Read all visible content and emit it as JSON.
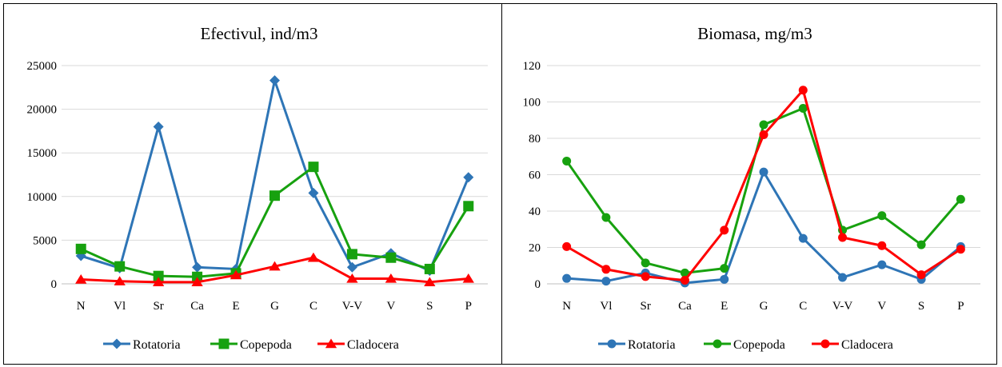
{
  "chart_data": [
    {
      "type": "line",
      "title": "Efectivul, ind/m3",
      "xlabel": "",
      "ylabel": "",
      "categories": [
        "N",
        "Vl",
        "Sr",
        "Ca",
        "E",
        "G",
        "C",
        "V-V",
        "V",
        "S",
        "P"
      ],
      "ylim": [
        0,
        25000
      ],
      "yticks": [
        0,
        5000,
        10000,
        15000,
        20000,
        25000
      ],
      "grid": true,
      "legend": "bottom",
      "series": [
        {
          "name": "Rotatoria",
          "color": "#2e75b6",
          "marker": "diamond",
          "values": [
            3200,
            1800,
            18000,
            1900,
            1700,
            23300,
            10400,
            1900,
            3500,
            1500,
            12200
          ]
        },
        {
          "name": "Copepoda",
          "color": "#17a10f",
          "marker": "square",
          "values": [
            4000,
            2000,
            900,
            800,
            1200,
            10100,
            13400,
            3400,
            3000,
            1700,
            8900
          ]
        },
        {
          "name": "Cladocera",
          "color": "#ff0000",
          "marker": "triangle",
          "values": [
            500,
            300,
            200,
            200,
            1000,
            2000,
            3000,
            600,
            600,
            200,
            600
          ]
        }
      ]
    },
    {
      "type": "line",
      "title": "Biomasa, mg/m3",
      "xlabel": "",
      "ylabel": "",
      "categories": [
        "N",
        "Vl",
        "Sr",
        "Ca",
        "E",
        "G",
        "C",
        "V-V",
        "V",
        "S",
        "P"
      ],
      "ylim": [
        0,
        120
      ],
      "yticks": [
        0,
        20,
        40,
        60,
        80,
        100,
        120
      ],
      "grid": true,
      "legend": "bottom",
      "series": [
        {
          "name": "Rotatoria",
          "color": "#2e75b6",
          "marker": "circle",
          "values": [
            3,
            1.5,
            6,
            0.5,
            2.5,
            61.5,
            25,
            3.5,
            10.5,
            2.5,
            20.5
          ]
        },
        {
          "name": "Copepoda",
          "color": "#17a10f",
          "marker": "circle",
          "values": [
            67.5,
            36.5,
            11.5,
            6,
            8.5,
            87.5,
            96.5,
            29.5,
            37.5,
            21.5,
            46.5
          ]
        },
        {
          "name": "Cladocera",
          "color": "#ff0000",
          "marker": "circle",
          "values": [
            20.5,
            8,
            4,
            2,
            29.5,
            82,
            106.5,
            25.5,
            21,
            5,
            19
          ]
        }
      ]
    }
  ]
}
